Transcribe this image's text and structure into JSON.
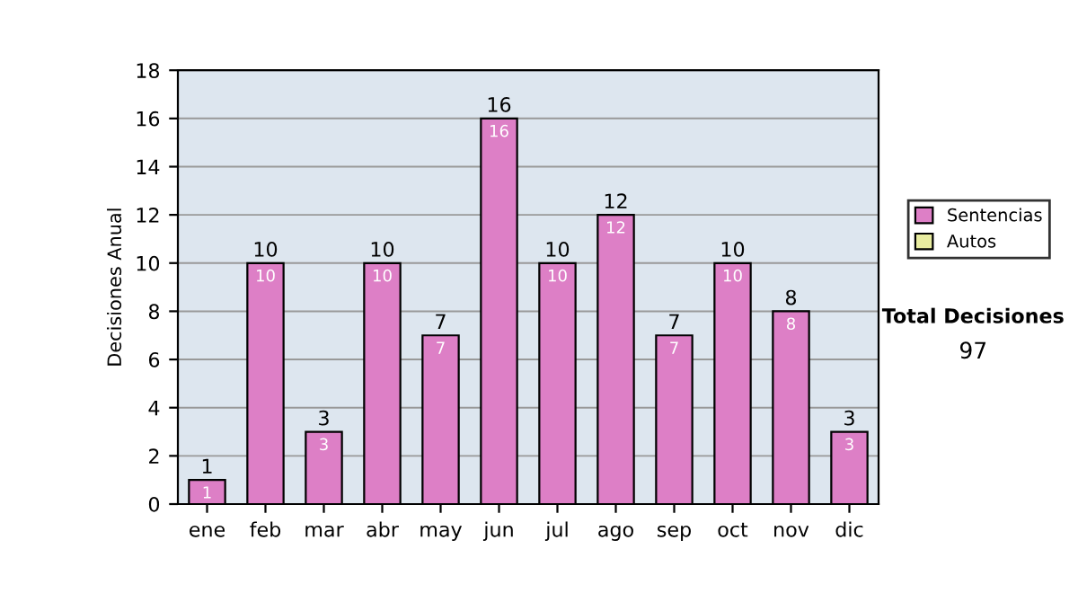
{
  "chart_data": {
    "type": "bar",
    "stacked": true,
    "ylabel": "Decisiones Anual",
    "categories": [
      "ene",
      "feb",
      "mar",
      "abr",
      "may",
      "jun",
      "jul",
      "ago",
      "sep",
      "oct",
      "nov",
      "dic"
    ],
    "series": [
      {
        "name": "Sentencias",
        "color": "#dd7fc6",
        "values": [
          1,
          10,
          3,
          10,
          7,
          16,
          10,
          12,
          7,
          10,
          8,
          3
        ],
        "value_labels": [
          "1",
          "10",
          "3",
          "10",
          "7",
          "16",
          "10",
          "12",
          "7",
          "10",
          "8",
          "3"
        ]
      },
      {
        "name": "Autos",
        "color": "#e8eca0",
        "values": [
          null,
          null,
          null,
          null,
          null,
          null,
          null,
          null,
          null,
          null,
          null,
          null
        ]
      }
    ],
    "totals": [
      "1",
      "10",
      "3",
      "10",
      "7",
      "16",
      "10",
      "12",
      "7",
      "10",
      "8",
      "3"
    ],
    "ylim": [
      0,
      18
    ],
    "yticks": [
      0,
      2,
      4,
      6,
      8,
      10,
      12,
      14,
      16,
      18
    ],
    "grid": "y",
    "legend": "right",
    "annotations": [
      "Total Decisiones",
      "97"
    ]
  }
}
